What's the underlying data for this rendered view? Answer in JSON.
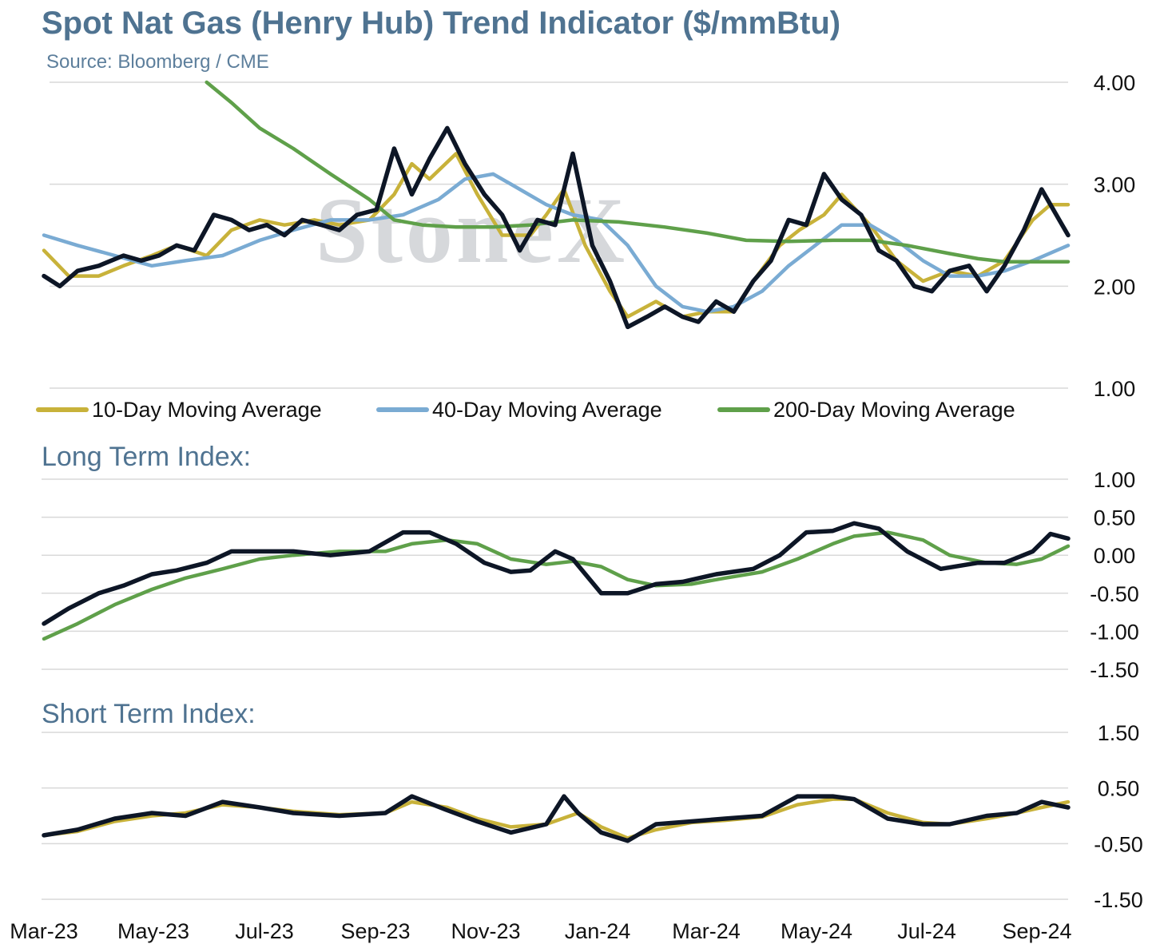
{
  "title": "Spot Nat Gas (Henry Hub) Trend Indicator ($/mmBtu)",
  "subtitle": "Source: Bloomberg / CME",
  "watermark": "StoneX",
  "colors": {
    "price": "#0d1626",
    "ma10": "#c8b23a",
    "ma40": "#7aabd3",
    "ma200": "#5fa04a",
    "title": "#4f7391"
  },
  "x_axis": {
    "labels": [
      "Mar-23",
      "May-23",
      "Jul-23",
      "Sep-23",
      "Nov-23",
      "Jan-24",
      "Mar-24",
      "May-24",
      "Jul-24",
      "Sep-24"
    ],
    "start": "2023-03-01",
    "end": "2024-09-30"
  },
  "chart_data": [
    {
      "type": "line",
      "title": "Spot Nat Gas (Henry Hub) Trend Indicator ($/mmBtu)",
      "ylim": [
        1.0,
        4.0
      ],
      "yticks": [
        "1.00",
        "2.00",
        "3.00",
        "4.00"
      ],
      "legend": [
        "10-Day Moving Average",
        "40-Day Moving Average",
        "200-Day Moving Average"
      ],
      "legend_position": "bottom",
      "series": [
        {
          "key": "price",
          "x": [
            "2023-03-01",
            "2023-03-10",
            "2023-03-20",
            "2023-04-01",
            "2023-04-15",
            "2023-04-25",
            "2023-05-05",
            "2023-05-15",
            "2023-05-25",
            "2023-06-05",
            "2023-06-15",
            "2023-06-25",
            "2023-07-05",
            "2023-07-15",
            "2023-07-25",
            "2023-08-05",
            "2023-08-15",
            "2023-08-25",
            "2023-09-05",
            "2023-09-15",
            "2023-09-25",
            "2023-10-05",
            "2023-10-15",
            "2023-10-25",
            "2023-11-05",
            "2023-11-15",
            "2023-11-25",
            "2023-12-05",
            "2023-12-15",
            "2023-12-25",
            "2024-01-05",
            "2024-01-15",
            "2024-01-25",
            "2024-02-05",
            "2024-02-15",
            "2024-02-25",
            "2024-03-05",
            "2024-03-15",
            "2024-03-25",
            "2024-04-05",
            "2024-04-15",
            "2024-04-25",
            "2024-05-05",
            "2024-05-15",
            "2024-05-25",
            "2024-06-05",
            "2024-06-15",
            "2024-06-25",
            "2024-07-05",
            "2024-07-15",
            "2024-07-25",
            "2024-08-05",
            "2024-08-15",
            "2024-08-25",
            "2024-09-05",
            "2024-09-15",
            "2024-09-25",
            "2024-09-30"
          ],
          "y": [
            2.1,
            2.0,
            2.15,
            2.2,
            2.3,
            2.25,
            2.3,
            2.4,
            2.35,
            2.7,
            2.65,
            2.55,
            2.6,
            2.5,
            2.65,
            2.6,
            2.55,
            2.7,
            2.75,
            3.35,
            2.9,
            3.25,
            3.55,
            3.2,
            2.9,
            2.7,
            2.35,
            2.65,
            2.6,
            3.3,
            2.4,
            2.05,
            1.6,
            1.7,
            1.8,
            1.7,
            1.65,
            1.85,
            1.75,
            2.05,
            2.25,
            2.65,
            2.6,
            3.1,
            2.85,
            2.7,
            2.35,
            2.25,
            2.0,
            1.95,
            2.15,
            2.2,
            1.95,
            2.2,
            2.55,
            2.95,
            2.65,
            2.5
          ]
        },
        {
          "key": "ma10",
          "x": [
            "2023-03-01",
            "2023-03-15",
            "2023-04-01",
            "2023-04-15",
            "2023-05-01",
            "2023-05-15",
            "2023-06-01",
            "2023-06-15",
            "2023-07-01",
            "2023-07-15",
            "2023-08-01",
            "2023-08-15",
            "2023-09-01",
            "2023-09-15",
            "2023-09-25",
            "2023-10-05",
            "2023-10-20",
            "2023-11-01",
            "2023-11-15",
            "2023-12-01",
            "2023-12-10",
            "2023-12-20",
            "2024-01-01",
            "2024-01-15",
            "2024-01-25",
            "2024-02-10",
            "2024-02-25",
            "2024-03-10",
            "2024-03-25",
            "2024-04-05",
            "2024-04-20",
            "2024-05-01",
            "2024-05-15",
            "2024-05-25",
            "2024-06-10",
            "2024-06-25",
            "2024-07-10",
            "2024-07-25",
            "2024-08-10",
            "2024-08-25",
            "2024-09-10",
            "2024-09-20",
            "2024-09-30"
          ],
          "y": [
            2.35,
            2.1,
            2.1,
            2.2,
            2.3,
            2.4,
            2.3,
            2.55,
            2.65,
            2.6,
            2.65,
            2.6,
            2.65,
            2.9,
            3.2,
            3.05,
            3.3,
            2.9,
            2.5,
            2.5,
            2.7,
            2.95,
            2.4,
            1.95,
            1.7,
            1.85,
            1.7,
            1.75,
            1.75,
            2.05,
            2.4,
            2.55,
            2.7,
            2.9,
            2.6,
            2.25,
            2.05,
            2.15,
            2.1,
            2.25,
            2.65,
            2.8,
            2.8
          ]
        },
        {
          "key": "ma40",
          "x": [
            "2023-03-01",
            "2023-03-20",
            "2023-04-10",
            "2023-05-01",
            "2023-05-20",
            "2023-06-10",
            "2023-07-01",
            "2023-07-20",
            "2023-08-10",
            "2023-09-01",
            "2023-09-20",
            "2023-10-10",
            "2023-10-25",
            "2023-11-10",
            "2023-11-25",
            "2023-12-10",
            "2023-12-25",
            "2024-01-10",
            "2024-01-25",
            "2024-02-10",
            "2024-02-25",
            "2024-03-10",
            "2024-03-25",
            "2024-04-10",
            "2024-04-25",
            "2024-05-10",
            "2024-05-25",
            "2024-06-10",
            "2024-06-25",
            "2024-07-10",
            "2024-07-25",
            "2024-08-10",
            "2024-08-25",
            "2024-09-10",
            "2024-09-30"
          ],
          "y": [
            2.5,
            2.4,
            2.3,
            2.2,
            2.25,
            2.3,
            2.45,
            2.55,
            2.65,
            2.65,
            2.7,
            2.85,
            3.05,
            3.1,
            2.95,
            2.8,
            2.7,
            2.65,
            2.4,
            2.0,
            1.8,
            1.75,
            1.8,
            1.95,
            2.2,
            2.4,
            2.6,
            2.6,
            2.45,
            2.25,
            2.1,
            2.1,
            2.15,
            2.25,
            2.4
          ]
        },
        {
          "key": "ma200",
          "x": [
            "2023-06-01",
            "2023-06-15",
            "2023-07-01",
            "2023-07-20",
            "2023-08-10",
            "2023-09-01",
            "2023-09-15",
            "2023-10-01",
            "2023-10-20",
            "2023-11-10",
            "2023-12-01",
            "2023-12-25",
            "2024-01-20",
            "2024-02-15",
            "2024-03-10",
            "2024-04-01",
            "2024-04-25",
            "2024-05-20",
            "2024-06-10",
            "2024-07-01",
            "2024-07-25",
            "2024-08-10",
            "2024-08-25",
            "2024-09-10",
            "2024-09-30"
          ],
          "y": [
            4.0,
            3.8,
            3.55,
            3.35,
            3.1,
            2.85,
            2.65,
            2.6,
            2.58,
            2.58,
            2.6,
            2.65,
            2.63,
            2.58,
            2.52,
            2.45,
            2.44,
            2.45,
            2.45,
            2.4,
            2.32,
            2.27,
            2.24,
            2.24,
            2.24
          ]
        }
      ]
    },
    {
      "type": "line",
      "title": "Long Term Index:",
      "ylim": [
        -1.5,
        1.0
      ],
      "yticks": [
        "-1.50",
        "-1.00",
        "-0.50",
        "0.00",
        "0.50",
        "1.00"
      ],
      "series": [
        {
          "key": "price",
          "x": [
            "2023-03-01",
            "2023-03-15",
            "2023-04-01",
            "2023-04-15",
            "2023-05-01",
            "2023-05-15",
            "2023-06-01",
            "2023-06-15",
            "2023-07-01",
            "2023-07-20",
            "2023-08-10",
            "2023-09-01",
            "2023-09-20",
            "2023-10-05",
            "2023-10-20",
            "2023-11-05",
            "2023-11-20",
            "2023-12-01",
            "2023-12-15",
            "2023-12-25",
            "2024-01-10",
            "2024-01-25",
            "2024-02-10",
            "2024-02-25",
            "2024-03-15",
            "2024-04-05",
            "2024-04-20",
            "2024-05-05",
            "2024-05-20",
            "2024-06-01",
            "2024-06-15",
            "2024-07-01",
            "2024-07-20",
            "2024-08-10",
            "2024-08-25",
            "2024-09-10",
            "2024-09-20",
            "2024-09-30"
          ],
          "y": [
            -0.9,
            -0.7,
            -0.5,
            -0.4,
            -0.25,
            -0.2,
            -0.1,
            0.05,
            0.05,
            0.05,
            0.0,
            0.05,
            0.3,
            0.3,
            0.15,
            -0.1,
            -0.22,
            -0.2,
            0.05,
            -0.05,
            -0.5,
            -0.5,
            -0.38,
            -0.35,
            -0.25,
            -0.18,
            0.0,
            0.3,
            0.32,
            0.42,
            0.35,
            0.05,
            -0.18,
            -0.1,
            -0.1,
            0.05,
            0.28,
            0.22
          ]
        },
        {
          "key": "ma200",
          "x": [
            "2023-03-01",
            "2023-03-20",
            "2023-04-10",
            "2023-05-01",
            "2023-05-20",
            "2023-06-10",
            "2023-07-01",
            "2023-07-20",
            "2023-08-15",
            "2023-09-10",
            "2023-09-25",
            "2023-10-15",
            "2023-11-01",
            "2023-11-20",
            "2023-12-10",
            "2023-12-25",
            "2024-01-10",
            "2024-01-25",
            "2024-02-10",
            "2024-03-01",
            "2024-03-20",
            "2024-04-10",
            "2024-04-30",
            "2024-05-20",
            "2024-06-01",
            "2024-06-20",
            "2024-07-10",
            "2024-07-25",
            "2024-08-15",
            "2024-09-01",
            "2024-09-15",
            "2024-09-30"
          ],
          "y": [
            -1.1,
            -0.9,
            -0.65,
            -0.45,
            -0.3,
            -0.18,
            -0.05,
            0.0,
            0.05,
            0.05,
            0.15,
            0.2,
            0.15,
            -0.05,
            -0.12,
            -0.08,
            -0.15,
            -0.32,
            -0.4,
            -0.38,
            -0.3,
            -0.22,
            -0.05,
            0.15,
            0.25,
            0.3,
            0.2,
            0.0,
            -0.1,
            -0.12,
            -0.05,
            0.12
          ]
        }
      ]
    },
    {
      "type": "line",
      "title": "Short Term Index:",
      "ylim": [
        -1.5,
        1.5
      ],
      "yticks": [
        "-1.50",
        "-0.50",
        "0.50",
        "1.50"
      ],
      "series": [
        {
          "key": "price",
          "x": [
            "2023-03-01",
            "2023-03-20",
            "2023-04-10",
            "2023-05-01",
            "2023-05-20",
            "2023-06-10",
            "2023-07-01",
            "2023-07-20",
            "2023-08-15",
            "2023-09-10",
            "2023-09-25",
            "2023-10-15",
            "2023-11-01",
            "2023-11-20",
            "2023-12-10",
            "2023-12-20",
            "2023-12-28",
            "2024-01-10",
            "2024-01-25",
            "2024-02-10",
            "2024-03-01",
            "2024-03-20",
            "2024-04-10",
            "2024-04-30",
            "2024-05-20",
            "2024-06-01",
            "2024-06-20",
            "2024-07-10",
            "2024-07-25",
            "2024-08-15",
            "2024-09-01",
            "2024-09-15",
            "2024-09-30"
          ],
          "y": [
            -0.35,
            -0.25,
            -0.05,
            0.05,
            0.0,
            0.25,
            0.15,
            0.05,
            0.0,
            0.05,
            0.35,
            0.1,
            -0.1,
            -0.3,
            -0.15,
            0.35,
            0.05,
            -0.3,
            -0.45,
            -0.15,
            -0.1,
            -0.05,
            0.0,
            0.35,
            0.35,
            0.3,
            -0.05,
            -0.15,
            -0.15,
            0.0,
            0.05,
            0.25,
            0.15
          ]
        },
        {
          "key": "ma10",
          "x": [
            "2023-03-01",
            "2023-03-20",
            "2023-04-10",
            "2023-05-01",
            "2023-05-20",
            "2023-06-10",
            "2023-07-01",
            "2023-07-20",
            "2023-08-15",
            "2023-09-10",
            "2023-09-25",
            "2023-10-15",
            "2023-11-01",
            "2023-11-20",
            "2023-12-10",
            "2023-12-28",
            "2024-01-10",
            "2024-01-25",
            "2024-02-10",
            "2024-03-01",
            "2024-03-20",
            "2024-04-10",
            "2024-04-30",
            "2024-05-20",
            "2024-06-01",
            "2024-06-20",
            "2024-07-10",
            "2024-07-25",
            "2024-08-15",
            "2024-09-01",
            "2024-09-15",
            "2024-09-30"
          ],
          "y": [
            -0.35,
            -0.28,
            -0.1,
            0.0,
            0.05,
            0.2,
            0.15,
            0.08,
            0.02,
            0.05,
            0.25,
            0.15,
            -0.05,
            -0.2,
            -0.15,
            0.05,
            -0.2,
            -0.4,
            -0.25,
            -0.12,
            -0.08,
            -0.02,
            0.2,
            0.3,
            0.3,
            0.05,
            -0.12,
            -0.15,
            -0.05,
            0.05,
            0.15,
            0.25
          ]
        }
      ]
    }
  ]
}
